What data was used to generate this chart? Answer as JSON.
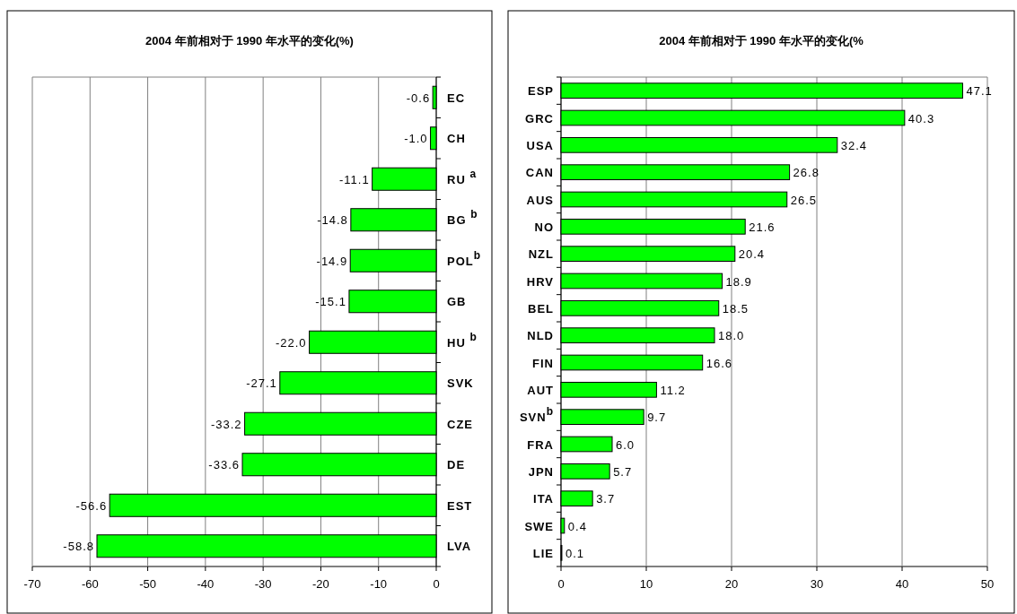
{
  "chart_data": [
    {
      "type": "bar",
      "orientation": "horizontal",
      "title": "2004 年前相对于 1990 年水平的变化(%)",
      "categories": [
        "EC",
        "CH",
        "RU $^{a}$",
        "BG $^{b}$",
        "POL$^{b}$",
        "GB",
        "HU $^{b}$",
        "SVK",
        "CZE",
        "DE",
        "EST",
        "LVA"
      ],
      "series": [
        {
          "color": "#00ff00",
          "values": [
            -0.6,
            -1.0,
            -11.1,
            -14.8,
            -14.9,
            -15.1,
            -22.0,
            -27.1,
            -33.2,
            -33.6,
            -56.6,
            -58.8
          ],
          "value_labels": [
            "-0.6",
            "-1.0",
            "-11.1",
            "-14.8",
            "-14.9",
            "-15.1",
            "-22.0",
            "-27.1",
            "-33.2",
            "-33.6",
            "-56.6",
            "-58.8"
          ]
        }
      ],
      "xlim": [
        -70,
        0
      ],
      "xticks": [
        -70,
        -60,
        -50,
        -40,
        -30,
        -20,
        -10,
        0
      ],
      "grid": "x"
    },
    {
      "type": "bar",
      "orientation": "horizontal",
      "title": "2004 年前相对于 1990 年水平的变化(%",
      "categories": [
        "ESP",
        "GRC",
        "USA",
        "CAN",
        "AUS",
        "NO",
        "NZL",
        "HRV",
        "BEL",
        "NLD",
        "FIN",
        "AUT",
        "SVN$^{b}$",
        "FRA",
        "JPN",
        "ITA",
        "SWE",
        "LIE"
      ],
      "series": [
        {
          "color": "#00ff00",
          "values": [
            47.1,
            40.3,
            32.4,
            26.8,
            26.5,
            21.6,
            20.4,
            18.9,
            18.5,
            18.0,
            16.6,
            11.2,
            9.7,
            6.0,
            5.7,
            3.7,
            0.4,
            0.1
          ],
          "value_labels": [
            "47.1",
            "40.3",
            "32.4",
            "26.8",
            "26.5",
            "21.6",
            "20.4",
            "18.9",
            "18.5",
            "18.0",
            "16.6",
            "11.2",
            "9.7",
            "6.0",
            "5.7",
            "3.7",
            "0.4",
            "0.1"
          ]
        }
      ],
      "xlim": [
        0,
        50
      ],
      "xticks": [
        0,
        10,
        20,
        30,
        40,
        50
      ],
      "grid": "x"
    }
  ]
}
